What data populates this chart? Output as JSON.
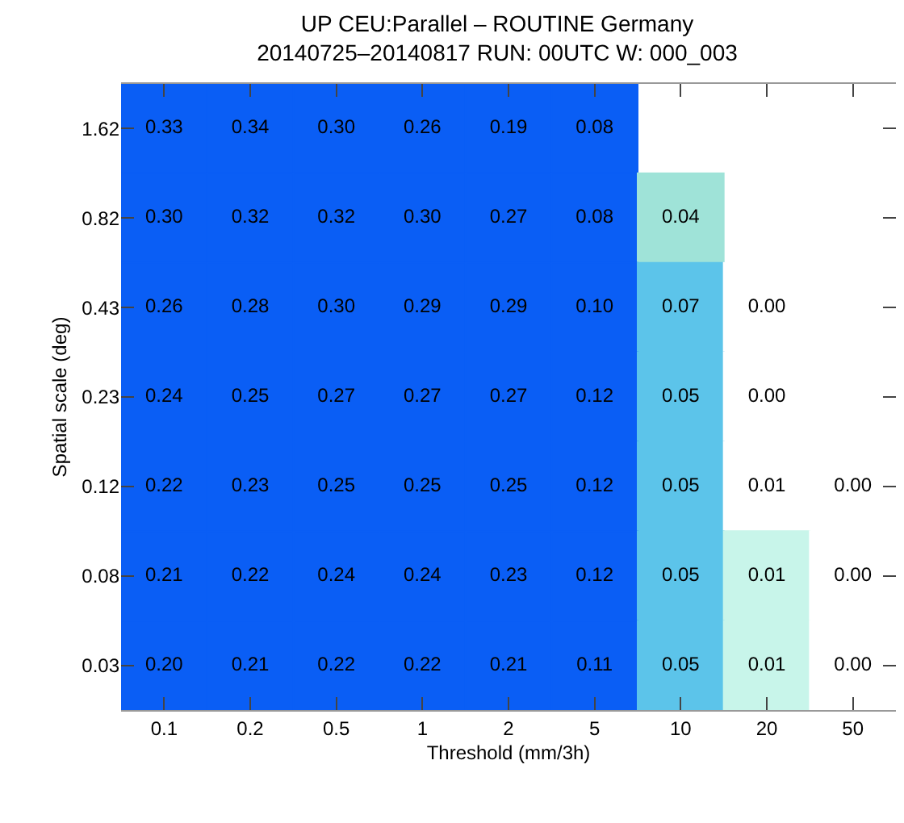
{
  "chart_data": {
    "type": "heatmap",
    "title": "UP CEU:Parallel – ROUTINE Germany",
    "subtitle": "20140725–20140817 RUN: 00UTC W: 000_003",
    "xlabel": "Threshold (mm/3h)",
    "ylabel": "Spatial scale (deg)",
    "categories": [
      "0.1",
      "0.2",
      "0.5",
      "1",
      "2",
      "5",
      "10",
      "20",
      "50"
    ],
    "y_categories": [
      "1.62",
      "0.82",
      "0.43",
      "0.23",
      "0.12",
      "0.08",
      "0.03"
    ],
    "cells": [
      [
        0.33,
        0.34,
        0.3,
        0.26,
        0.19,
        0.08,
        null,
        null,
        null
      ],
      [
        0.3,
        0.32,
        0.32,
        0.3,
        0.27,
        0.08,
        0.04,
        null,
        null
      ],
      [
        0.26,
        0.28,
        0.3,
        0.29,
        0.29,
        0.1,
        0.07,
        0.0,
        null
      ],
      [
        0.24,
        0.25,
        0.27,
        0.27,
        0.27,
        0.12,
        0.05,
        0.0,
        null
      ],
      [
        0.22,
        0.23,
        0.25,
        0.25,
        0.25,
        0.12,
        0.05,
        0.01,
        0.0
      ],
      [
        0.21,
        0.22,
        0.24,
        0.24,
        0.23,
        0.12,
        0.05,
        0.01,
        0.0
      ],
      [
        0.2,
        0.21,
        0.22,
        0.22,
        0.21,
        0.11,
        0.05,
        0.01,
        0.0
      ]
    ],
    "colors": [
      [
        "#0a5ef5",
        "#0a5ef5",
        "#0a5ef5",
        "#0a5ef5",
        "#0a5ef5",
        "#0a5ef5",
        null,
        null,
        null
      ],
      [
        "#0a5ef5",
        "#0a5ef5",
        "#0a5ef5",
        "#0a5ef5",
        "#0a5ef5",
        "#0a5ef5",
        "#9fe3d8",
        null,
        null
      ],
      [
        "#0a5ef5",
        "#0a5ef5",
        "#0a5ef5",
        "#0a5ef5",
        "#0a5ef5",
        "#0a5ef5",
        "#5cc4ea",
        "#ffffff",
        null
      ],
      [
        "#0a5ef5",
        "#0a5ef5",
        "#0a5ef5",
        "#0a5ef5",
        "#0a5ef5",
        "#0a5ef5",
        "#5cc4ea",
        "#ffffff",
        null
      ],
      [
        "#0a5ef5",
        "#0a5ef5",
        "#0a5ef5",
        "#0a5ef5",
        "#0a5ef5",
        "#0a5ef5",
        "#5cc4ea",
        "#ffffff",
        "#ffffff"
      ],
      [
        "#0a5ef5",
        "#0a5ef5",
        "#0a5ef5",
        "#0a5ef5",
        "#0a5ef5",
        "#0a5ef5",
        "#5cc4ea",
        "#c8f5ea",
        "#ffffff"
      ],
      [
        "#0a5ef5",
        "#0a5ef5",
        "#0a5ef5",
        "#0a5ef5",
        "#0a5ef5",
        "#0a5ef5",
        "#5cc4ea",
        "#c8f5ea",
        "#ffffff"
      ]
    ],
    "cell_labels": [
      [
        "0.33",
        "0.34",
        "0.30",
        "0.26",
        "0.19",
        "0.08",
        null,
        null,
        null
      ],
      [
        "0.30",
        "0.32",
        "0.32",
        "0.30",
        "0.27",
        "0.08",
        "0.04",
        null,
        null
      ],
      [
        "0.26",
        "0.28",
        "0.30",
        "0.29",
        "0.29",
        "0.10",
        "0.07",
        "0.00",
        null
      ],
      [
        "0.24",
        "0.25",
        "0.27",
        "0.27",
        "0.27",
        "0.12",
        "0.05",
        "0.00",
        null
      ],
      [
        "0.22",
        "0.23",
        "0.25",
        "0.25",
        "0.25",
        "0.12",
        "0.05",
        "0.01",
        "0.00"
      ],
      [
        "0.21",
        "0.22",
        "0.24",
        "0.24",
        "0.23",
        "0.12",
        "0.05",
        "0.01",
        "0.00"
      ],
      [
        "0.20",
        "0.21",
        "0.22",
        "0.22",
        "0.21",
        "0.11",
        "0.05",
        "0.01",
        "0.00"
      ]
    ],
    "data_labels": true
  }
}
